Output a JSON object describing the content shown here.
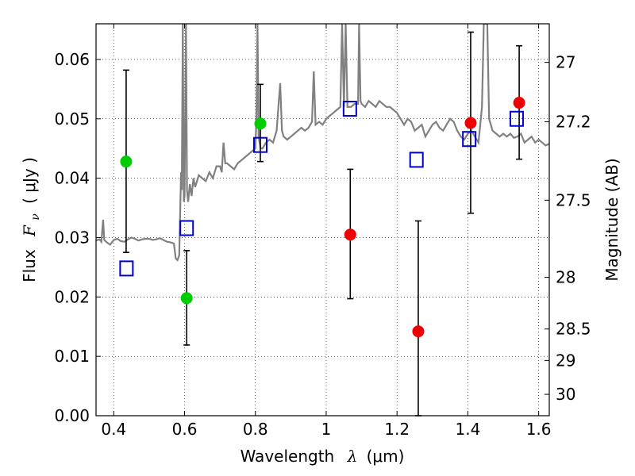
{
  "chart_data": {
    "type": "scatter",
    "xlabel_prefix": "Wavelength",
    "xlabel_symbol": "λ",
    "xlabel_unit": "(μm)",
    "ylabel_prefix": "Flux",
    "ylabel_symbol": "F",
    "ylabel_subscript": "ν",
    "ylabel_unit": "( μJy )",
    "y2label": "Magnitude (AB)",
    "xlim": [
      0.35,
      1.63
    ],
    "ylim": [
      0.0,
      0.066
    ],
    "grid": true,
    "x_ticks": [
      0.4,
      0.6,
      0.8,
      1.0,
      1.2,
      1.4,
      1.6
    ],
    "x_tick_labels": [
      "0.4",
      "0.6",
      "0.8",
      "1",
      "1.2",
      "1.4",
      "1.6"
    ],
    "y_ticks": [
      0.0,
      0.01,
      0.02,
      0.03,
      0.04,
      0.05,
      0.06
    ],
    "y_tick_labels": [
      "0.00",
      "0.01",
      "0.02",
      "0.03",
      "0.04",
      "0.05",
      "0.06"
    ],
    "y2_ticks": [
      {
        "label": "27",
        "flux": 0.0595
      },
      {
        "label": "27.2",
        "flux": 0.0495
      },
      {
        "label": "27.5",
        "flux": 0.0363
      },
      {
        "label": "28",
        "flux": 0.0233
      },
      {
        "label": "28.5",
        "flux": 0.0146
      },
      {
        "label": "29",
        "flux": 0.0093
      },
      {
        "label": "30",
        "flux": 0.0036
      }
    ],
    "spectrum": {
      "color": "#808080",
      "points": [
        [
          0.35,
          0.0295
        ],
        [
          0.36,
          0.0297
        ],
        [
          0.365,
          0.0293
        ],
        [
          0.37,
          0.033
        ],
        [
          0.373,
          0.0296
        ],
        [
          0.38,
          0.0292
        ],
        [
          0.39,
          0.0288
        ],
        [
          0.4,
          0.0296
        ],
        [
          0.41,
          0.0298
        ],
        [
          0.42,
          0.0294
        ],
        [
          0.43,
          0.0293
        ],
        [
          0.44,
          0.0297
        ],
        [
          0.45,
          0.03
        ],
        [
          0.46,
          0.0298
        ],
        [
          0.47,
          0.0295
        ],
        [
          0.48,
          0.0297
        ],
        [
          0.49,
          0.0298
        ],
        [
          0.5,
          0.0298
        ],
        [
          0.51,
          0.0296
        ],
        [
          0.52,
          0.0297
        ],
        [
          0.53,
          0.0299
        ],
        [
          0.54,
          0.0296
        ],
        [
          0.55,
          0.0293
        ],
        [
          0.56,
          0.0292
        ],
        [
          0.57,
          0.029
        ],
        [
          0.575,
          0.0265
        ],
        [
          0.58,
          0.0262
        ],
        [
          0.585,
          0.027
        ],
        [
          0.59,
          0.041
        ],
        [
          0.592,
          0.038
        ],
        [
          0.595,
          0.066
        ],
        [
          0.598,
          0.036
        ],
        [
          0.6,
          0.037
        ],
        [
          0.604,
          0.066
        ],
        [
          0.607,
          0.038
        ],
        [
          0.61,
          0.036
        ],
        [
          0.615,
          0.039
        ],
        [
          0.62,
          0.037
        ],
        [
          0.625,
          0.04
        ],
        [
          0.63,
          0.0385
        ],
        [
          0.64,
          0.0405
        ],
        [
          0.65,
          0.04
        ],
        [
          0.66,
          0.0395
        ],
        [
          0.67,
          0.041
        ],
        [
          0.68,
          0.04
        ],
        [
          0.69,
          0.042
        ],
        [
          0.7,
          0.042
        ],
        [
          0.705,
          0.041
        ],
        [
          0.71,
          0.046
        ],
        [
          0.715,
          0.0425
        ],
        [
          0.72,
          0.0425
        ],
        [
          0.73,
          0.042
        ],
        [
          0.74,
          0.0415
        ],
        [
          0.75,
          0.0425
        ],
        [
          0.76,
          0.043
        ],
        [
          0.77,
          0.0435
        ],
        [
          0.78,
          0.044
        ],
        [
          0.79,
          0.0445
        ],
        [
          0.8,
          0.045
        ],
        [
          0.803,
          0.05
        ],
        [
          0.806,
          0.066
        ],
        [
          0.809,
          0.047
        ],
        [
          0.815,
          0.045
        ],
        [
          0.82,
          0.045
        ],
        [
          0.83,
          0.046
        ],
        [
          0.84,
          0.0465
        ],
        [
          0.85,
          0.046
        ],
        [
          0.86,
          0.048
        ],
        [
          0.87,
          0.056
        ],
        [
          0.875,
          0.048
        ],
        [
          0.88,
          0.047
        ],
        [
          0.89,
          0.0465
        ],
        [
          0.9,
          0.047
        ],
        [
          0.91,
          0.0475
        ],
        [
          0.92,
          0.048
        ],
        [
          0.93,
          0.0485
        ],
        [
          0.94,
          0.048
        ],
        [
          0.95,
          0.0485
        ],
        [
          0.96,
          0.0495
        ],
        [
          0.965,
          0.058
        ],
        [
          0.97,
          0.049
        ],
        [
          0.98,
          0.0495
        ],
        [
          0.99,
          0.049
        ],
        [
          1.0,
          0.05
        ],
        [
          1.01,
          0.0505
        ],
        [
          1.02,
          0.051
        ],
        [
          1.03,
          0.0515
        ],
        [
          1.04,
          0.052
        ],
        [
          1.045,
          0.066
        ],
        [
          1.05,
          0.052
        ],
        [
          1.055,
          0.066
        ],
        [
          1.06,
          0.052
        ],
        [
          1.07,
          0.052
        ],
        [
          1.08,
          0.0525
        ],
        [
          1.09,
          0.0525
        ],
        [
          1.093,
          0.066
        ],
        [
          1.097,
          0.053
        ],
        [
          1.1,
          0.0525
        ],
        [
          1.11,
          0.052
        ],
        [
          1.12,
          0.053
        ],
        [
          1.13,
          0.0525
        ],
        [
          1.14,
          0.052
        ],
        [
          1.15,
          0.053
        ],
        [
          1.16,
          0.0525
        ],
        [
          1.17,
          0.052
        ],
        [
          1.18,
          0.052
        ],
        [
          1.19,
          0.0515
        ],
        [
          1.2,
          0.051
        ],
        [
          1.21,
          0.05
        ],
        [
          1.22,
          0.049
        ],
        [
          1.23,
          0.05
        ],
        [
          1.24,
          0.0495
        ],
        [
          1.25,
          0.048
        ],
        [
          1.26,
          0.0485
        ],
        [
          1.27,
          0.049
        ],
        [
          1.28,
          0.047
        ],
        [
          1.29,
          0.048
        ],
        [
          1.3,
          0.049
        ],
        [
          1.31,
          0.0495
        ],
        [
          1.32,
          0.0485
        ],
        [
          1.33,
          0.048
        ],
        [
          1.34,
          0.049
        ],
        [
          1.35,
          0.05
        ],
        [
          1.36,
          0.0495
        ],
        [
          1.37,
          0.048
        ],
        [
          1.38,
          0.047
        ],
        [
          1.39,
          0.0465
        ],
        [
          1.4,
          0.0475
        ],
        [
          1.41,
          0.048
        ],
        [
          1.42,
          0.047
        ],
        [
          1.43,
          0.046
        ],
        [
          1.44,
          0.052
        ],
        [
          1.445,
          0.066
        ],
        [
          1.455,
          0.066
        ],
        [
          1.46,
          0.05
        ],
        [
          1.47,
          0.048
        ],
        [
          1.48,
          0.0475
        ],
        [
          1.49,
          0.047
        ],
        [
          1.5,
          0.0475
        ],
        [
          1.51,
          0.047
        ],
        [
          1.52,
          0.0475
        ],
        [
          1.53,
          0.0468
        ],
        [
          1.54,
          0.047
        ],
        [
          1.55,
          0.0475
        ],
        [
          1.56,
          0.046
        ],
        [
          1.57,
          0.0465
        ],
        [
          1.58,
          0.047
        ],
        [
          1.59,
          0.046
        ],
        [
          1.6,
          0.0465
        ],
        [
          1.61,
          0.046
        ],
        [
          1.62,
          0.0455
        ],
        [
          1.63,
          0.0458
        ]
      ]
    },
    "series": [
      {
        "marker": "open-square",
        "color": "#0000cc",
        "points": [
          {
            "x": 0.436,
            "y": 0.0248
          },
          {
            "x": 0.606,
            "y": 0.0316
          },
          {
            "x": 0.814,
            "y": 0.0456
          },
          {
            "x": 1.067,
            "y": 0.0517
          },
          {
            "x": 1.255,
            "y": 0.0431
          },
          {
            "x": 1.404,
            "y": 0.0466
          },
          {
            "x": 1.538,
            "y": 0.05
          }
        ]
      },
      {
        "marker": "filled-circle",
        "color": "#00cc00",
        "points": [
          {
            "x": 0.435,
            "y": 0.0428,
            "ylo": 0.0275,
            "yhi": 0.0582
          },
          {
            "x": 0.606,
            "y": 0.0198,
            "ylo": 0.0119,
            "yhi": 0.0278
          },
          {
            "x": 0.814,
            "y": 0.0492,
            "ylo": 0.0428,
            "yhi": 0.0558
          }
        ]
      },
      {
        "marker": "filled-circle",
        "color": "#ee0000",
        "points": [
          {
            "x": 1.068,
            "y": 0.0305,
            "ylo": 0.0197,
            "yhi": 0.0415
          },
          {
            "x": 1.26,
            "y": 0.0142,
            "ylo": 0.0,
            "yhi": 0.0328
          },
          {
            "x": 1.408,
            "y": 0.0493,
            "ylo": 0.0341,
            "yhi": 0.0646
          },
          {
            "x": 1.545,
            "y": 0.0527,
            "ylo": 0.0432,
            "yhi": 0.0623
          }
        ]
      }
    ]
  }
}
